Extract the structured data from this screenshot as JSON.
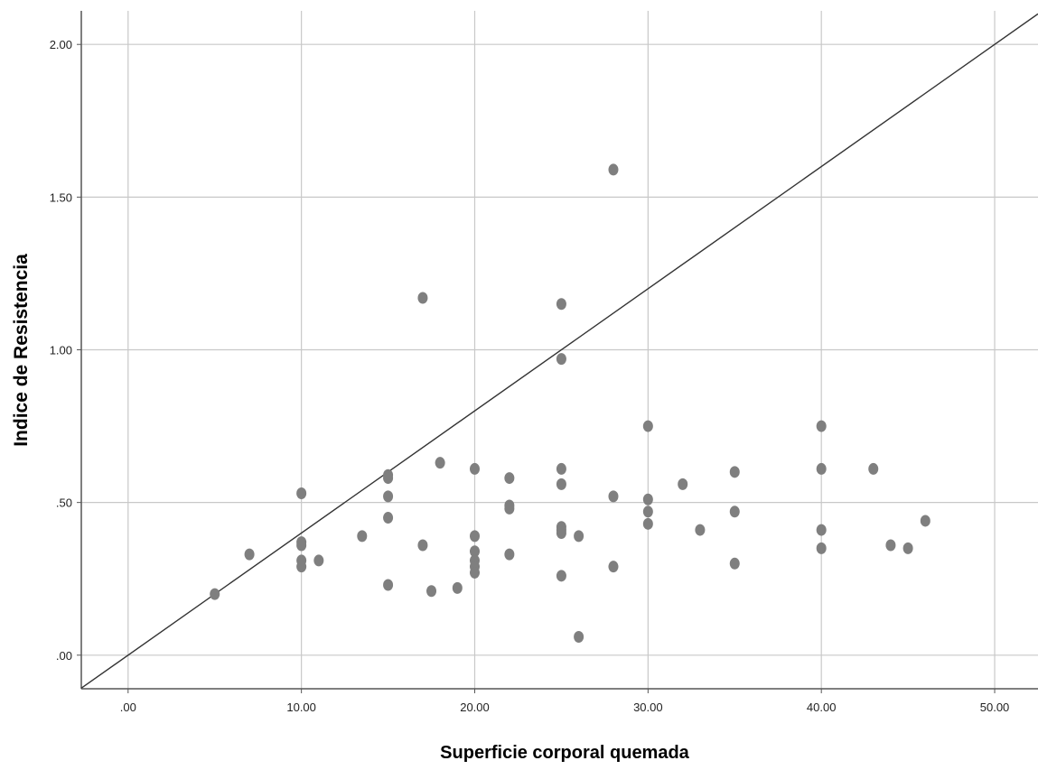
{
  "chart_data": {
    "type": "scatter",
    "title": "",
    "xlabel": "Superficie corporal quemada",
    "ylabel": "Indice de Resistencia",
    "xlim": [
      -2.7,
      52.5
    ],
    "ylim": [
      -0.11,
      2.11
    ],
    "x_ticks": [
      0,
      10,
      20,
      30,
      40,
      50
    ],
    "x_tick_labels": [
      ".00",
      "10.00",
      "20.00",
      "30.00",
      "40.00",
      "50.00"
    ],
    "y_ticks": [
      0,
      0.5,
      1.0,
      1.5,
      2.0
    ],
    "y_tick_labels": [
      ".00",
      ".50",
      "1.00",
      "1.50",
      "2.00"
    ],
    "grid": true,
    "reference_line": {
      "slope": 0.04,
      "intercept": 0
    },
    "colors": {
      "points": "#7f7f7f",
      "grid": "#c8c8c8",
      "line": "#333333",
      "axis": "#555555"
    },
    "points": [
      {
        "x": 5,
        "y": 0.2
      },
      {
        "x": 7,
        "y": 0.33
      },
      {
        "x": 10,
        "y": 0.53
      },
      {
        "x": 10,
        "y": 0.37
      },
      {
        "x": 10,
        "y": 0.36
      },
      {
        "x": 10,
        "y": 0.31
      },
      {
        "x": 10,
        "y": 0.29
      },
      {
        "x": 11,
        "y": 0.31
      },
      {
        "x": 13.5,
        "y": 0.39
      },
      {
        "x": 15,
        "y": 0.59
      },
      {
        "x": 15,
        "y": 0.58
      },
      {
        "x": 15,
        "y": 0.52
      },
      {
        "x": 15,
        "y": 0.45
      },
      {
        "x": 15,
        "y": 0.23
      },
      {
        "x": 17,
        "y": 1.17
      },
      {
        "x": 17,
        "y": 0.36
      },
      {
        "x": 17.5,
        "y": 0.21
      },
      {
        "x": 18,
        "y": 0.63
      },
      {
        "x": 19,
        "y": 0.22
      },
      {
        "x": 20,
        "y": 0.61
      },
      {
        "x": 20,
        "y": 0.39
      },
      {
        "x": 20,
        "y": 0.34
      },
      {
        "x": 20,
        "y": 0.31
      },
      {
        "x": 20,
        "y": 0.29
      },
      {
        "x": 20,
        "y": 0.27
      },
      {
        "x": 22,
        "y": 0.58
      },
      {
        "x": 22,
        "y": 0.49
      },
      {
        "x": 22,
        "y": 0.48
      },
      {
        "x": 22,
        "y": 0.33
      },
      {
        "x": 25,
        "y": 1.15
      },
      {
        "x": 25,
        "y": 0.97
      },
      {
        "x": 25,
        "y": 0.61
      },
      {
        "x": 25,
        "y": 0.56
      },
      {
        "x": 25,
        "y": 0.42
      },
      {
        "x": 25,
        "y": 0.41
      },
      {
        "x": 25,
        "y": 0.4
      },
      {
        "x": 25,
        "y": 0.26
      },
      {
        "x": 26,
        "y": 0.39
      },
      {
        "x": 26,
        "y": 0.06
      },
      {
        "x": 28,
        "y": 1.59
      },
      {
        "x": 28,
        "y": 0.52
      },
      {
        "x": 28,
        "y": 0.29
      },
      {
        "x": 30,
        "y": 0.75
      },
      {
        "x": 30,
        "y": 0.51
      },
      {
        "x": 30,
        "y": 0.47
      },
      {
        "x": 30,
        "y": 0.43
      },
      {
        "x": 32,
        "y": 0.56
      },
      {
        "x": 33,
        "y": 0.41
      },
      {
        "x": 35,
        "y": 0.6
      },
      {
        "x": 35,
        "y": 0.47
      },
      {
        "x": 35,
        "y": 0.3
      },
      {
        "x": 40,
        "y": 0.75
      },
      {
        "x": 40,
        "y": 0.61
      },
      {
        "x": 40,
        "y": 0.41
      },
      {
        "x": 40,
        "y": 0.35
      },
      {
        "x": 43,
        "y": 0.61
      },
      {
        "x": 44,
        "y": 0.36
      },
      {
        "x": 45,
        "y": 0.35
      },
      {
        "x": 46,
        "y": 0.44
      }
    ]
  }
}
